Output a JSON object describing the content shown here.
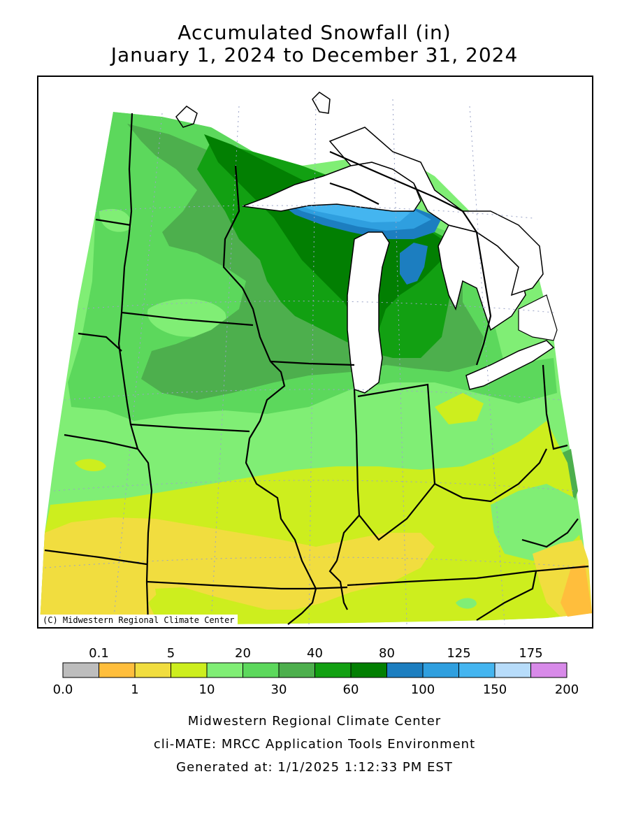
{
  "title": {
    "line1": "Accumulated Snowfall (in)",
    "line2": "January 1, 2024 to December 31, 2024"
  },
  "map": {
    "credit": "(C) Midwestern Regional Climate Center",
    "unit": "in"
  },
  "legend": {
    "top_labels": [
      "0.1",
      "5",
      "20",
      "40",
      "80",
      "125",
      "175"
    ],
    "bottom_labels": [
      "0.0",
      "1",
      "10",
      "30",
      "60",
      "100",
      "150",
      "200"
    ],
    "bins": [
      {
        "from": "0.0",
        "to": "0.1",
        "color": "#bdbdbd"
      },
      {
        "from": "0.1",
        "to": "1",
        "color": "#ffbe3c"
      },
      {
        "from": "1",
        "to": "5",
        "color": "#f1dd3f"
      },
      {
        "from": "5",
        "to": "10",
        "color": "#cdee1e"
      },
      {
        "from": "10",
        "to": "20",
        "color": "#80ee75"
      },
      {
        "from": "20",
        "to": "30",
        "color": "#5cd85c"
      },
      {
        "from": "30",
        "to": "40",
        "color": "#4daf4d"
      },
      {
        "from": "40",
        "to": "60",
        "color": "#12a012"
      },
      {
        "from": "60",
        "to": "80",
        "color": "#027f02"
      },
      {
        "from": "80",
        "to": "100",
        "color": "#1c7ec0"
      },
      {
        "from": "100",
        "to": "125",
        "color": "#2f9fdf"
      },
      {
        "from": "125",
        "to": "150",
        "color": "#44b5f0"
      },
      {
        "from": "150",
        "to": "175",
        "color": "#b7dcfa"
      },
      {
        "from": "175",
        "to": "200",
        "color": "#d88ae9"
      }
    ]
  },
  "footer": {
    "line1": "Midwestern Regional Climate Center",
    "line2": "cli-MATE: MRCC Application Tools Environment",
    "line3": "Generated at: 1/1/2025 1:12:33 PM EST"
  }
}
